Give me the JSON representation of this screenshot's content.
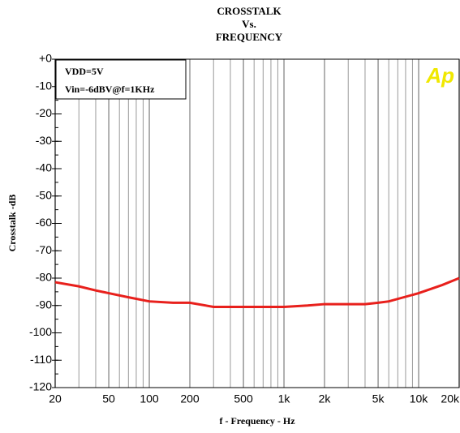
{
  "chart_data": {
    "type": "line",
    "title": [
      "CROSSTALK",
      "Vs.",
      "FREQUENCY"
    ],
    "x_label": "f - Frequency - Hz",
    "y_label": "Crosstalk -dB",
    "annotations": [
      "VDD=5V",
      "Vin=-6dBV@f=1KHz"
    ],
    "logo": "Ap",
    "x": [
      20,
      30,
      40,
      50,
      70,
      100,
      150,
      200,
      300,
      500,
      1000,
      1500,
      2000,
      3000,
      4000,
      5000,
      6000,
      10000,
      15000,
      20000
    ],
    "values": [
      -81.5,
      -83,
      -84.5,
      -85.5,
      -87,
      -88.5,
      -89,
      -89,
      -90.5,
      -90.5,
      -90.5,
      -90,
      -89.5,
      -89.5,
      -89.5,
      -89,
      -88.5,
      -85.5,
      -82.5,
      -80
    ],
    "color": "#e8201c",
    "xlog": true,
    "xlim": [
      20,
      20000
    ],
    "xticks": [
      20,
      50,
      100,
      200,
      500,
      {
        "value": 1000,
        "label": "1k"
      },
      {
        "value": 2000,
        "label": "2k"
      },
      {
        "value": 5000,
        "label": "5k"
      },
      {
        "value": 10000,
        "label": "10k"
      },
      {
        "value": 20000,
        "label": "20k"
      }
    ],
    "ylim": [
      -120,
      0
    ],
    "yticks": [
      {
        "value": 0,
        "label": "+0"
      },
      -10,
      -20,
      -30,
      -40,
      -50,
      -60,
      -70,
      -80,
      -90,
      -100,
      -110,
      -120
    ],
    "yminor_step": 5,
    "xgrid": true,
    "xminor_grid": true
  }
}
